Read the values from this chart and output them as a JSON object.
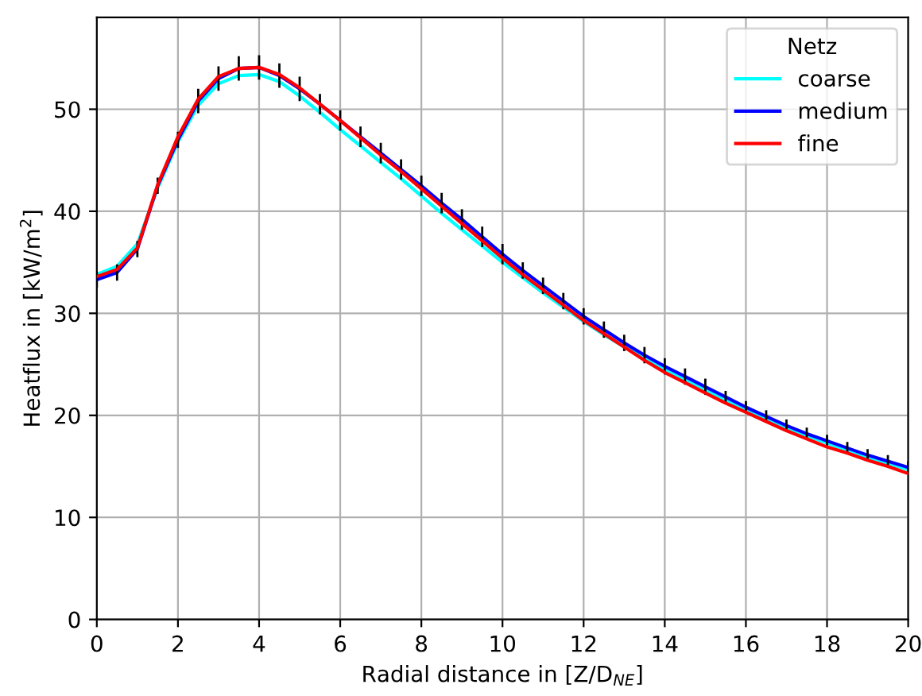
{
  "chart_data": {
    "type": "line",
    "xlabel": "Radial distance in [Z/D$_{NE}$]",
    "ylabel": "Heatflux in [kW/m$^{2}$]",
    "legend_title": "Netz",
    "x": [
      0,
      0.5,
      1,
      1.5,
      2,
      2.5,
      3,
      3.5,
      4,
      4.5,
      5,
      5.5,
      6,
      6.5,
      7,
      7.5,
      8,
      8.5,
      9,
      9.5,
      10,
      10.5,
      11,
      11.5,
      12,
      12.5,
      13,
      13.5,
      14,
      14.5,
      15,
      15.5,
      16,
      16.5,
      17,
      17.5,
      18,
      18.5,
      19,
      19.5,
      20
    ],
    "series": [
      {
        "name": "coarse",
        "color": "#00ffff",
        "values": [
          33.8,
          34.6,
          36.8,
          42.3,
          46.8,
          50.4,
          52.5,
          53.3,
          53.4,
          52.7,
          51.3,
          49.7,
          48.0,
          46.4,
          44.8,
          43.2,
          41.5,
          39.8,
          38.2,
          36.6,
          35.0,
          33.5,
          32.0,
          30.6,
          29.2,
          27.9,
          26.7,
          25.6,
          24.5,
          23.5,
          22.5,
          21.5,
          20.6,
          19.7,
          18.8,
          18.0,
          17.3,
          16.6,
          15.9,
          15.3,
          14.7
        ]
      },
      {
        "name": "medium",
        "color": "#0000ff",
        "values": [
          33.3,
          34.0,
          36.3,
          42.5,
          47.0,
          50.8,
          53.0,
          54.0,
          54.1,
          53.3,
          52.0,
          50.5,
          48.9,
          47.3,
          45.7,
          44.1,
          42.5,
          40.8,
          39.2,
          37.5,
          35.8,
          34.2,
          32.7,
          31.2,
          29.7,
          28.4,
          27.1,
          25.9,
          24.8,
          23.8,
          22.8,
          21.8,
          20.8,
          19.9,
          19.0,
          18.2,
          17.5,
          16.8,
          16.1,
          15.5,
          14.9
        ],
        "errors": [
          0.8,
          0.8,
          0.8,
          0.8,
          0.8,
          1.2,
          1.2,
          1.2,
          1.2,
          1.2,
          1.2,
          1.0,
          1.0,
          1.0,
          1.0,
          1.0,
          1.0,
          1.0,
          1.0,
          1.0,
          1.0,
          0.8,
          0.8,
          0.8,
          0.8,
          0.8,
          0.8,
          0.8,
          0.8,
          0.8,
          0.8,
          0.6,
          0.6,
          0.6,
          0.6,
          0.6,
          0.6,
          0.6,
          0.6,
          0.6,
          0.6
        ]
      },
      {
        "name": "fine",
        "color": "#ff0000",
        "values": [
          33.6,
          34.3,
          36.4,
          42.6,
          47.3,
          51.0,
          53.2,
          54.0,
          54.1,
          53.4,
          52.1,
          50.5,
          48.9,
          47.2,
          45.5,
          43.9,
          42.2,
          40.5,
          38.8,
          37.1,
          35.4,
          33.8,
          32.3,
          30.8,
          29.3,
          28.0,
          26.7,
          25.4,
          24.2,
          23.2,
          22.2,
          21.2,
          20.3,
          19.4,
          18.5,
          17.7,
          16.9,
          16.3,
          15.6,
          15.0,
          14.3
        ]
      }
    ],
    "xlim": [
      0,
      20
    ],
    "xticks": [
      0,
      2,
      4,
      6,
      8,
      10,
      12,
      14,
      16,
      18,
      20
    ],
    "ylim": [
      0,
      59
    ],
    "yticks": [
      0,
      10,
      20,
      30,
      40,
      50
    ],
    "grid": true,
    "legend": "top right",
    "marker": "none",
    "line_style": "solid"
  }
}
